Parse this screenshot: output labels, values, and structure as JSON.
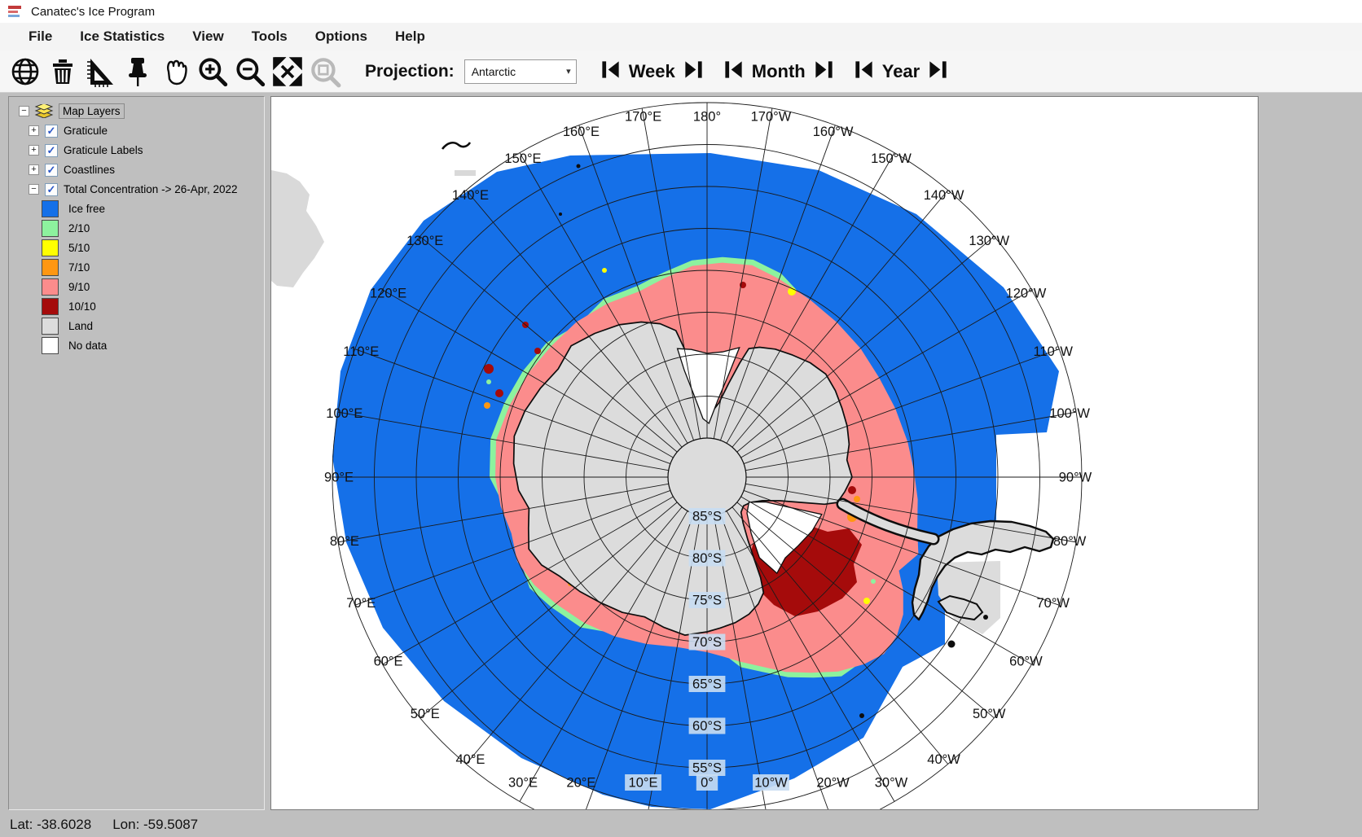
{
  "window": {
    "title": "Canatec's Ice Program"
  },
  "menu": {
    "items": [
      "File",
      "Ice Statistics",
      "View",
      "Tools",
      "Options",
      "Help"
    ]
  },
  "toolbar": {
    "icons": [
      "globe-icon",
      "delete-icon",
      "measure-icon",
      "pin-icon",
      "pan-icon",
      "zoom-in-icon",
      "zoom-out-icon",
      "full-extent-icon",
      "zoom-window-icon"
    ],
    "projection_label": "Projection:",
    "projection_value": "Antarctic",
    "nav": [
      {
        "label": "Week"
      },
      {
        "label": "Month"
      },
      {
        "label": "Year"
      }
    ]
  },
  "sidebar": {
    "root_label": "Map Layers",
    "layers": [
      {
        "label": "Graticule",
        "checked": true,
        "expander": "+"
      },
      {
        "label": "Graticule Labels",
        "checked": true,
        "expander": "+"
      },
      {
        "label": "Coastlines",
        "checked": true,
        "expander": "+"
      },
      {
        "label": "Total Concentration -> 26-Apr, 2022",
        "checked": true,
        "expander": "-"
      }
    ],
    "legend": [
      {
        "label": "Ice free",
        "color": "#1570E8"
      },
      {
        "label": "2/10",
        "color": "#8DF29E"
      },
      {
        "label": "5/10",
        "color": "#FFFF00"
      },
      {
        "label": "7/10",
        "color": "#FF9712"
      },
      {
        "label": "9/10",
        "color": "#FB8C8C"
      },
      {
        "label": "10/10",
        "color": "#A50B0B"
      },
      {
        "label": "Land",
        "color": "#DCDCDC"
      },
      {
        "label": "No data",
        "color": "#FFFFFF"
      }
    ]
  },
  "map": {
    "colors": {
      "sea_ice_free": "#1570E8",
      "conc_2": "#8DF29E",
      "conc_5": "#FFFF00",
      "conc_7": "#FF9712",
      "conc_9": "#FB8C8C",
      "conc_10": "#A50B0B",
      "land": "#DCDCDC",
      "no_data": "#FFFFFF",
      "label_bg": "#C8DDF2"
    },
    "lat_labels": [
      "85°S",
      "80°S",
      "75°S",
      "70°S",
      "65°S",
      "60°S",
      "55°S"
    ],
    "lon_labels": [
      {
        "deg": 0,
        "label": "0°",
        "bg": true
      },
      {
        "deg": 10,
        "label": "10°E",
        "bg": true
      },
      {
        "deg": 20,
        "label": "20°E",
        "bg": false
      },
      {
        "deg": 30,
        "label": "30°E",
        "bg": false
      },
      {
        "deg": 40,
        "label": "40°E",
        "bg": false
      },
      {
        "deg": 50,
        "label": "50°E",
        "bg": false
      },
      {
        "deg": 60,
        "label": "60°E",
        "bg": false
      },
      {
        "deg": 70,
        "label": "70°E",
        "bg": false
      },
      {
        "deg": 80,
        "label": "80°E",
        "bg": false
      },
      {
        "deg": 90,
        "label": "90°E",
        "bg": false
      },
      {
        "deg": 100,
        "label": "100°E",
        "bg": false
      },
      {
        "deg": 110,
        "label": "110°E",
        "bg": false
      },
      {
        "deg": 120,
        "label": "120°E",
        "bg": false
      },
      {
        "deg": 130,
        "label": "130°E",
        "bg": false
      },
      {
        "deg": 140,
        "label": "140°E",
        "bg": false
      },
      {
        "deg": 150,
        "label": "150°E",
        "bg": false
      },
      {
        "deg": 160,
        "label": "160°E",
        "bg": false
      },
      {
        "deg": 170,
        "label": "170°E",
        "bg": false
      },
      {
        "deg": 180,
        "label": "180°",
        "bg": false
      },
      {
        "deg": -170,
        "label": "170°W",
        "bg": false
      },
      {
        "deg": -160,
        "label": "160°W",
        "bg": false
      },
      {
        "deg": -150,
        "label": "150°W",
        "bg": false
      },
      {
        "deg": -140,
        "label": "140°W",
        "bg": false
      },
      {
        "deg": -130,
        "label": "130°W",
        "bg": false
      },
      {
        "deg": -120,
        "label": "120°W",
        "bg": false
      },
      {
        "deg": -110,
        "label": "110°W",
        "bg": false
      },
      {
        "deg": -100,
        "label": "100°W",
        "bg": false
      },
      {
        "deg": -90,
        "label": "90°W",
        "bg": false
      },
      {
        "deg": -80,
        "label": "80°W",
        "bg": false
      },
      {
        "deg": -70,
        "label": "70°W",
        "bg": false
      },
      {
        "deg": -60,
        "label": "60°W",
        "bg": false
      },
      {
        "deg": -50,
        "label": "50°W",
        "bg": false
      },
      {
        "deg": -40,
        "label": "40°W",
        "bg": false
      },
      {
        "deg": -30,
        "label": "30°W",
        "bg": false
      },
      {
        "deg": -20,
        "label": "20°W",
        "bg": false
      },
      {
        "deg": -10,
        "label": "10°W",
        "bg": true
      }
    ]
  },
  "statusbar": {
    "lat": "Lat: -38.6028",
    "lon": "Lon: -59.5087"
  }
}
